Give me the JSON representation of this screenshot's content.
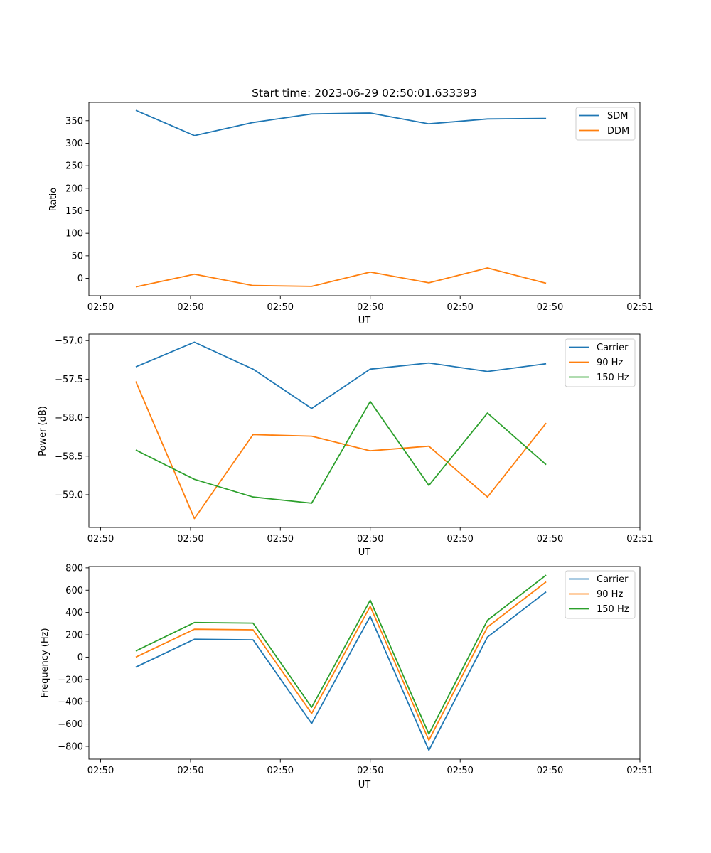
{
  "chart_data": [
    {
      "type": "line",
      "title": "Start time: 2023-06-29 02:50:01.633393",
      "xlabel": "UT",
      "ylabel": "Ratio",
      "x": [
        0.3,
        0.8,
        1.3,
        1.8,
        2.3,
        2.8,
        3.3,
        3.8
      ],
      "xlim": [
        -0.1,
        4.6
      ],
      "xticks": [
        0,
        0.767,
        1.533,
        2.3,
        3.067,
        3.833,
        4.6
      ],
      "xtick_labels": [
        "02:50",
        "02:50",
        "02:50",
        "02:50",
        "02:50",
        "02:50",
        "02:51"
      ],
      "ylim": [
        -38.6,
        390.7
      ],
      "yticks": [
        0,
        50,
        100,
        150,
        200,
        250,
        300,
        350
      ],
      "series": [
        {
          "name": "SDM",
          "color": "#1f77b4",
          "values": [
            373,
            317,
            346,
            365,
            367,
            343,
            354,
            355
          ]
        },
        {
          "name": "DDM",
          "color": "#ff7f0e",
          "values": [
            -19,
            9,
            -16,
            -18,
            14,
            -10,
            23,
            -11
          ]
        }
      ],
      "legend": "top-right",
      "grid": false
    },
    {
      "type": "line",
      "title": "",
      "xlabel": "UT",
      "ylabel": "Power (dB)",
      "x": [
        0.3,
        0.8,
        1.3,
        1.8,
        2.3,
        2.8,
        3.3,
        3.8
      ],
      "xlim": [
        -0.1,
        4.6
      ],
      "xticks": [
        0,
        0.767,
        1.533,
        2.3,
        3.067,
        3.833,
        4.6
      ],
      "xtick_labels": [
        "02:50",
        "02:50",
        "02:50",
        "02:50",
        "02:50",
        "02:50",
        "02:51"
      ],
      "ylim": [
        -59.425,
        -56.915
      ],
      "yticks": [
        -59.0,
        -58.5,
        -58.0,
        -57.5,
        -57.0
      ],
      "ytick_labels": [
        "−59.0",
        "−58.5",
        "−58.0",
        "−57.5",
        "−57.0"
      ],
      "series": [
        {
          "name": "Carrier",
          "color": "#1f77b4",
          "values": [
            -57.34,
            -57.02,
            -57.37,
            -57.88,
            -57.37,
            -57.29,
            -57.4,
            -57.3
          ]
        },
        {
          "name": "90 Hz",
          "color": "#ff7f0e",
          "values": [
            -57.53,
            -59.31,
            -58.22,
            -58.24,
            -58.43,
            -58.37,
            -59.03,
            -58.07
          ]
        },
        {
          "name": "150 Hz",
          "color": "#2ca02c",
          "values": [
            -58.42,
            -58.8,
            -59.03,
            -59.11,
            -57.79,
            -58.88,
            -57.94,
            -58.61
          ]
        }
      ],
      "legend": "top-right",
      "grid": false
    },
    {
      "type": "line",
      "title": "",
      "xlabel": "UT",
      "ylabel": "Frequency (Hz)",
      "x": [
        0.3,
        0.8,
        1.3,
        1.8,
        2.3,
        2.8,
        3.3,
        3.8
      ],
      "xlim": [
        -0.1,
        4.6
      ],
      "xticks": [
        0,
        0.767,
        1.533,
        2.3,
        3.067,
        3.833,
        4.6
      ],
      "xtick_labels": [
        "02:50",
        "02:50",
        "02:50",
        "02:50",
        "02:50",
        "02:50",
        "02:51"
      ],
      "ylim": [
        -915,
        812
      ],
      "yticks": [
        -800,
        -600,
        -400,
        -200,
        0,
        200,
        400,
        600,
        800
      ],
      "ytick_labels": [
        "−800",
        "−600",
        "−400",
        "−200",
        "0",
        "200",
        "400",
        "600",
        "800"
      ],
      "series": [
        {
          "name": "Carrier",
          "color": "#1f77b4",
          "values": [
            -90,
            160,
            155,
            -595,
            365,
            -835,
            180,
            585
          ]
        },
        {
          "name": "90 Hz",
          "color": "#ff7f0e",
          "values": [
            0,
            250,
            245,
            -505,
            455,
            -745,
            270,
            675
          ]
        },
        {
          "name": "150 Hz",
          "color": "#2ca02c",
          "values": [
            55,
            310,
            305,
            -450,
            510,
            -690,
            330,
            735
          ]
        }
      ],
      "legend": "top-right",
      "grid": false
    }
  ]
}
